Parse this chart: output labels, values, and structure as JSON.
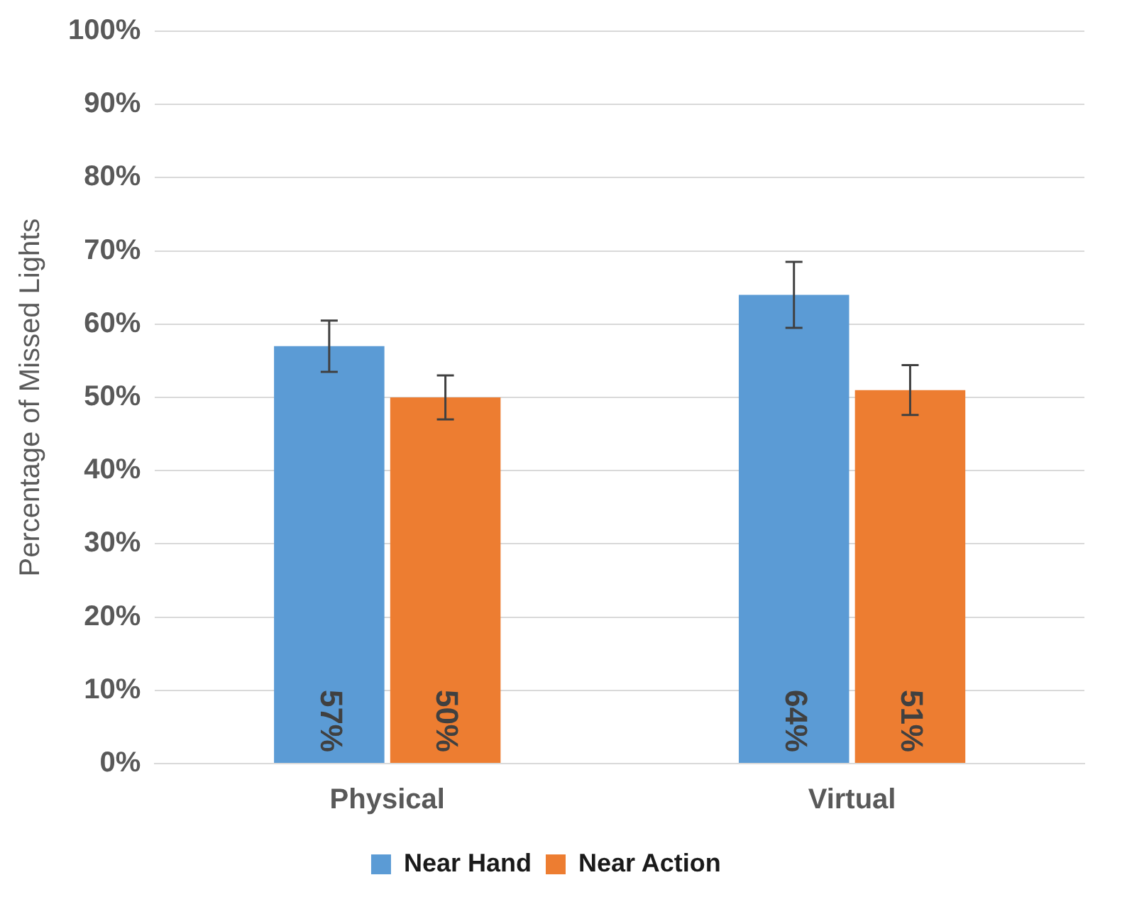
{
  "chart_data": {
    "type": "bar",
    "ylabel": "Percentage of Missed Lights",
    "categories": [
      "Physical",
      "Virtual"
    ],
    "series": [
      {
        "name": "Near Hand",
        "color": "#5b9bd5",
        "values": [
          57,
          64
        ],
        "errors": [
          3.5,
          4.5
        ],
        "value_labels": [
          "57%",
          "64%"
        ]
      },
      {
        "name": "Near Action",
        "color": "#ed7d31",
        "values": [
          50,
          51
        ],
        "errors": [
          3,
          3.4
        ],
        "value_labels": [
          "50%",
          "51%"
        ]
      }
    ],
    "ylim": [
      0,
      100
    ],
    "yticks": [
      {
        "value": 0,
        "label": "0%"
      },
      {
        "value": 10,
        "label": "10%"
      },
      {
        "value": 20,
        "label": "20%"
      },
      {
        "value": 30,
        "label": "30%"
      },
      {
        "value": 40,
        "label": "40%"
      },
      {
        "value": 50,
        "label": "50%"
      },
      {
        "value": 60,
        "label": "60%"
      },
      {
        "value": 70,
        "label": "70%"
      },
      {
        "value": 80,
        "label": "80%"
      },
      {
        "value": 90,
        "label": "90%"
      },
      {
        "value": 100,
        "label": "100%"
      }
    ],
    "grid": "y",
    "legend": "bottom"
  }
}
